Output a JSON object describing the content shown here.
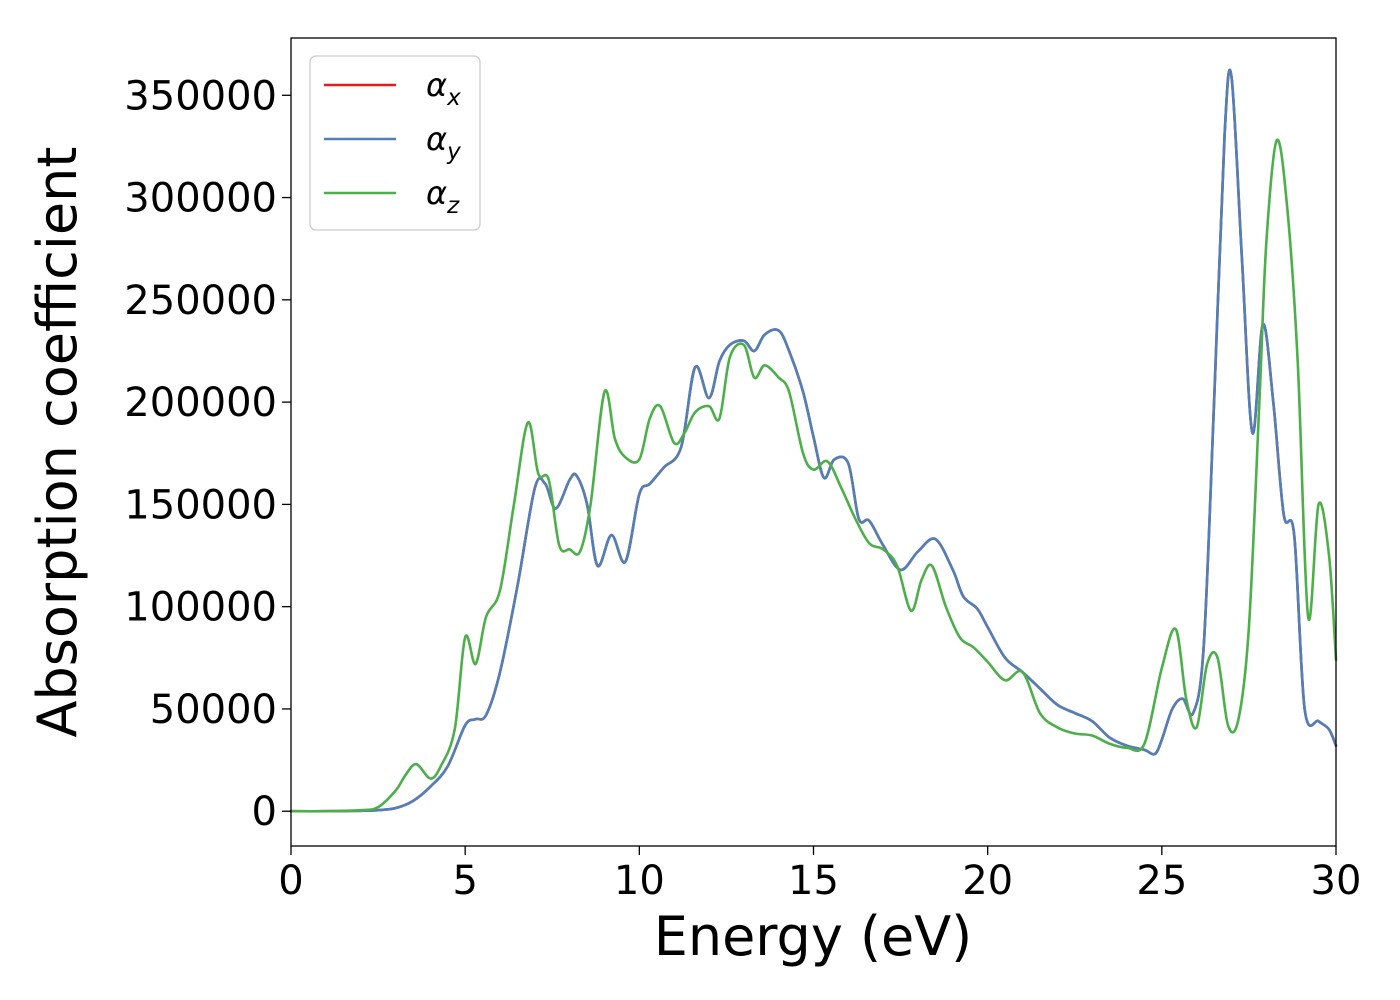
{
  "chart_data": {
    "type": "line",
    "title": "",
    "xlabel": "Energy (eV)",
    "ylabel": "Absorption coefficient",
    "xlim": [
      0,
      30
    ],
    "ylim": [
      -17000,
      378000
    ],
    "xticks": [
      0,
      5,
      10,
      15,
      20,
      25,
      30
    ],
    "xtick_labels": [
      "0",
      "5",
      "10",
      "15",
      "20",
      "25",
      "30"
    ],
    "yticks": [
      0,
      50000,
      100000,
      150000,
      200000,
      250000,
      300000,
      350000
    ],
    "ytick_labels": [
      "0",
      "50000",
      "100000",
      "150000",
      "200000",
      "250000",
      "300000",
      "350000"
    ],
    "grid": false,
    "legend_position": "top-left",
    "series": [
      {
        "name": "α",
        "subscript": "x",
        "color": "#e41a1c",
        "x": [
          0,
          1,
          2,
          2.5,
          3,
          3.5,
          4,
          4.5,
          5,
          5.3,
          5.6,
          6,
          6.5,
          7,
          7.3,
          7.6,
          8,
          8.2,
          8.5,
          8.8,
          9.2,
          9.6,
          10,
          10.3,
          10.7,
          11.2,
          11.6,
          12,
          12.3,
          12.6,
          13,
          13.3,
          13.6,
          14,
          14.3,
          14.7,
          15,
          15.3,
          15.6,
          16,
          16.3,
          16.6,
          17,
          17.5,
          18,
          18.5,
          19,
          19.3,
          19.7,
          20,
          20.5,
          21,
          21.5,
          22,
          22.5,
          23,
          23.5,
          24,
          24.5,
          24.8,
          25,
          25.3,
          25.6,
          25.9,
          26.2,
          26.5,
          26.8,
          27,
          27.3,
          27.6,
          27.9,
          28.2,
          28.5,
          28.8,
          29.1,
          29.5,
          29.8,
          30
        ],
        "values": [
          0,
          0,
          200,
          500,
          1500,
          5000,
          12000,
          22000,
          42000,
          45000,
          47000,
          68000,
          110000,
          158000,
          160000,
          148000,
          162000,
          164000,
          150000,
          120000,
          135000,
          122000,
          155000,
          160000,
          168000,
          178000,
          217000,
          202000,
          220000,
          228000,
          230000,
          225000,
          233000,
          235000,
          225000,
          205000,
          183000,
          163000,
          172000,
          170000,
          143000,
          142000,
          130000,
          118000,
          127000,
          133000,
          118000,
          105000,
          99000,
          90000,
          75000,
          68000,
          60000,
          52000,
          48000,
          44000,
          36000,
          32000,
          30000,
          28000,
          35000,
          50000,
          55000,
          48000,
          80000,
          200000,
          330000,
          359000,
          270000,
          185000,
          238000,
          200000,
          145000,
          135000,
          50000,
          44000,
          40000,
          32000
        ]
      },
      {
        "name": "α",
        "subscript": "y",
        "color": "#4f80b8",
        "x": [
          0,
          1,
          2,
          2.5,
          3,
          3.5,
          4,
          4.5,
          5,
          5.3,
          5.6,
          6,
          6.5,
          7,
          7.3,
          7.6,
          8,
          8.2,
          8.5,
          8.8,
          9.2,
          9.6,
          10,
          10.3,
          10.7,
          11.2,
          11.6,
          12,
          12.3,
          12.6,
          13,
          13.3,
          13.6,
          14,
          14.3,
          14.7,
          15,
          15.3,
          15.6,
          16,
          16.3,
          16.6,
          17,
          17.5,
          18,
          18.5,
          19,
          19.3,
          19.7,
          20,
          20.5,
          21,
          21.5,
          22,
          22.5,
          23,
          23.5,
          24,
          24.5,
          24.8,
          25,
          25.3,
          25.6,
          25.9,
          26.2,
          26.5,
          26.8,
          27,
          27.3,
          27.6,
          27.9,
          28.2,
          28.5,
          28.8,
          29.1,
          29.5,
          29.8,
          30
        ],
        "values": [
          0,
          0,
          200,
          500,
          1500,
          5000,
          12000,
          22000,
          42000,
          45000,
          47000,
          68000,
          110000,
          158000,
          160000,
          148000,
          162000,
          164000,
          150000,
          120000,
          135000,
          122000,
          155000,
          160000,
          168000,
          178000,
          217000,
          202000,
          220000,
          228000,
          230000,
          225000,
          233000,
          235000,
          225000,
          205000,
          183000,
          163000,
          172000,
          170000,
          143000,
          142000,
          130000,
          118000,
          127000,
          133000,
          118000,
          105000,
          99000,
          90000,
          75000,
          68000,
          60000,
          52000,
          48000,
          44000,
          36000,
          32000,
          30000,
          28000,
          35000,
          50000,
          55000,
          48000,
          80000,
          200000,
          330000,
          359000,
          270000,
          185000,
          238000,
          200000,
          145000,
          135000,
          50000,
          44000,
          40000,
          32000
        ]
      },
      {
        "name": "α",
        "subscript": "z",
        "color": "#4daf4a",
        "x": [
          0,
          1,
          2,
          2.5,
          3,
          3.3,
          3.6,
          4,
          4.3,
          4.7,
          5,
          5.3,
          5.6,
          6,
          6.4,
          6.8,
          7.1,
          7.4,
          7.7,
          8,
          8.3,
          8.6,
          9,
          9.3,
          9.6,
          10,
          10.3,
          10.6,
          11,
          11.3,
          11.6,
          12,
          12.3,
          12.6,
          13,
          13.3,
          13.6,
          14,
          14.3,
          14.7,
          15,
          15.4,
          15.8,
          16.2,
          16.6,
          17,
          17.4,
          17.8,
          18.1,
          18.4,
          18.8,
          19.2,
          19.6,
          20,
          20.5,
          21,
          21.5,
          22,
          22.5,
          23,
          23.5,
          24,
          24.5,
          25,
          25.4,
          25.7,
          26,
          26.3,
          26.6,
          26.9,
          27.2,
          27.5,
          27.8,
          28,
          28.3,
          28.6,
          28.9,
          29.2,
          29.5,
          29.8,
          30
        ],
        "values": [
          0,
          0,
          500,
          2000,
          10000,
          18000,
          23000,
          16000,
          22000,
          40000,
          85000,
          72000,
          95000,
          108000,
          150000,
          190000,
          165000,
          162000,
          130000,
          128000,
          127000,
          150000,
          205000,
          182000,
          173000,
          172000,
          192000,
          198000,
          180000,
          185000,
          195000,
          198000,
          192000,
          222000,
          228000,
          212000,
          218000,
          212000,
          205000,
          175000,
          167000,
          171000,
          158000,
          143000,
          131000,
          128000,
          120000,
          98000,
          113000,
          120000,
          100000,
          85000,
          80000,
          73000,
          64000,
          68000,
          48000,
          41000,
          38000,
          37000,
          33000,
          31000,
          33000,
          70000,
          89000,
          55000,
          41000,
          72000,
          75000,
          42000,
          45000,
          90000,
          200000,
          278000,
          328000,
          295000,
          220000,
          95000,
          150000,
          125000,
          74000
        ]
      }
    ]
  }
}
